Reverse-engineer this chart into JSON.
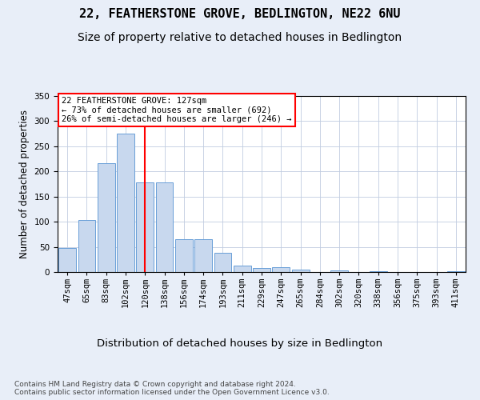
{
  "title1": "22, FEATHERSTONE GROVE, BEDLINGTON, NE22 6NU",
  "title2": "Size of property relative to detached houses in Bedlington",
  "xlabel": "Distribution of detached houses by size in Bedlington",
  "ylabel": "Number of detached properties",
  "categories": [
    "47sqm",
    "65sqm",
    "83sqm",
    "102sqm",
    "120sqm",
    "138sqm",
    "156sqm",
    "174sqm",
    "193sqm",
    "211sqm",
    "229sqm",
    "247sqm",
    "265sqm",
    "284sqm",
    "302sqm",
    "320sqm",
    "338sqm",
    "356sqm",
    "375sqm",
    "393sqm",
    "411sqm"
  ],
  "values": [
    47,
    103,
    216,
    275,
    178,
    178,
    65,
    65,
    38,
    12,
    8,
    9,
    4,
    0,
    3,
    0,
    1,
    0,
    0,
    0,
    2
  ],
  "bar_color": "#c8d8ee",
  "bar_edge_color": "#6a9fd8",
  "vline_x_index": 4,
  "vline_color": "red",
  "annotation_text": "22 FEATHERSTONE GROVE: 127sqm\n← 73% of detached houses are smaller (692)\n26% of semi-detached houses are larger (246) →",
  "annotation_box_color": "white",
  "annotation_box_edge_color": "red",
  "ylim": [
    0,
    350
  ],
  "yticks": [
    0,
    50,
    100,
    150,
    200,
    250,
    300,
    350
  ],
  "footnote": "Contains HM Land Registry data © Crown copyright and database right 2024.\nContains public sector information licensed under the Open Government Licence v3.0.",
  "background_color": "#e8eef8",
  "plot_background": "white",
  "title1_fontsize": 11,
  "title2_fontsize": 10,
  "xlabel_fontsize": 9.5,
  "ylabel_fontsize": 8.5,
  "tick_fontsize": 7.5,
  "annot_fontsize": 7.5,
  "footnote_fontsize": 6.5
}
